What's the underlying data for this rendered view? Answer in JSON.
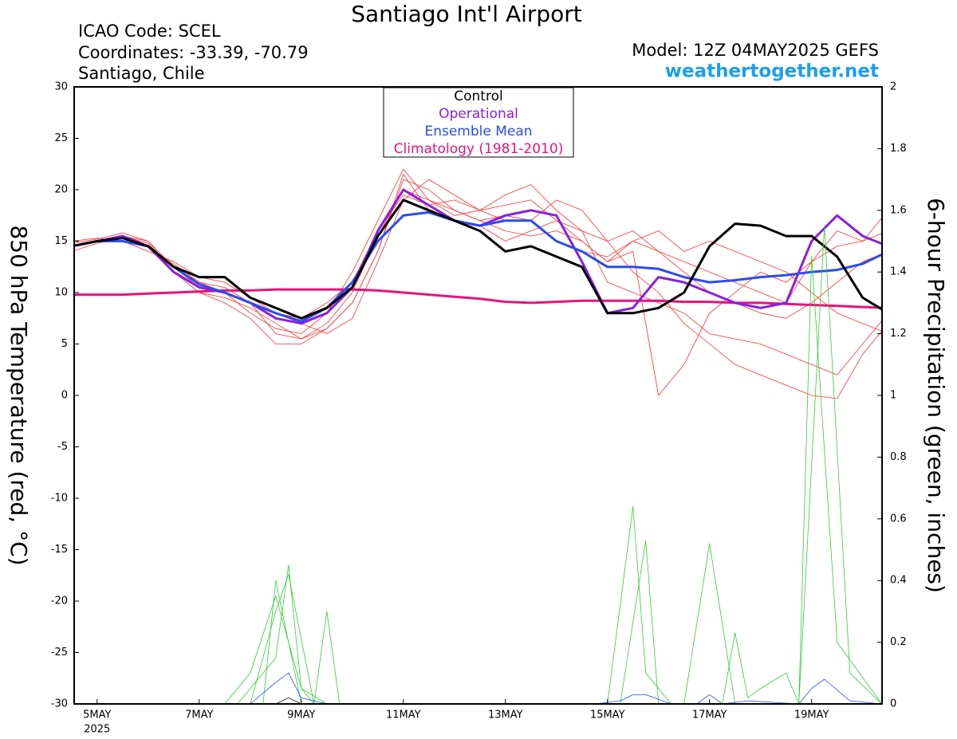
{
  "chart_data": {
    "type": "line",
    "title": "Santiago Int'l Airport",
    "info_left": [
      "ICAO Code: SCEL",
      "Coordinates: -33.39, -70.79",
      "Santiago, Chile"
    ],
    "model": "Model: 12Z 04MAY2025 GEFS",
    "source": "weathertogether.net",
    "y_label": "850 hPa Temperature (red, °C)",
    "y2_label": "6-hour Precipitation (green, inches)",
    "x_year_label": "2025",
    "xlim": [
      4.55,
      20.38
    ],
    "xticks": [
      {
        "value": 5,
        "label": "5MAY"
      },
      {
        "value": 7,
        "label": "7MAY"
      },
      {
        "value": 9,
        "label": "9MAY"
      },
      {
        "value": 11,
        "label": "11MAY"
      },
      {
        "value": 13,
        "label": "13MAY"
      },
      {
        "value": 15,
        "label": "15MAY"
      },
      {
        "value": 17,
        "label": "17MAY"
      },
      {
        "value": 19,
        "label": "19MAY"
      }
    ],
    "ylim": [
      -30,
      30
    ],
    "yticks": [
      30,
      25,
      20,
      15,
      10,
      5,
      0,
      -5,
      -10,
      -15,
      -20,
      -25,
      -30
    ],
    "y2lim": [
      0,
      2
    ],
    "y2ticks": [
      2,
      1.8,
      1.6,
      1.4,
      1.2,
      1,
      0.8,
      0.6,
      0.4,
      0.2,
      0
    ],
    "x": [
      4.5,
      5,
      5.5,
      6,
      6.5,
      7,
      7.5,
      8,
      8.5,
      9,
      9.5,
      10,
      10.5,
      11,
      11.5,
      12,
      12.5,
      13,
      13.5,
      14,
      14.5,
      15,
      15.5,
      16,
      16.5,
      17,
      17.5,
      18,
      18.5,
      19,
      19.5,
      20,
      20.5
    ],
    "series": [
      {
        "color": "#ff3030",
        "values": [
          14.5,
          15,
          15.5,
          15,
          12,
          10,
          9.5,
          8.5,
          7,
          5.5,
          6.5,
          9,
          14,
          21,
          20,
          18,
          17,
          17.5,
          17,
          15,
          14,
          13.5,
          15,
          14,
          12,
          10,
          9,
          8,
          7.5,
          9,
          11,
          13,
          14
        ]
      },
      {
        "color": "#ff3030",
        "values": [
          14,
          14.8,
          15.3,
          14.5,
          12.8,
          11,
          10,
          8,
          6.5,
          6,
          8,
          12,
          17,
          22,
          19,
          17.5,
          18,
          18.5,
          19,
          17,
          16,
          15,
          16,
          14,
          13,
          12,
          11,
          10,
          9,
          13,
          16,
          15,
          18
        ]
      },
      {
        "color": "#ff3030",
        "values": [
          15,
          15.3,
          15,
          14,
          13,
          11.5,
          11,
          9.5,
          8,
          7.5,
          9,
          11,
          16,
          19.5,
          18.5,
          19,
          18,
          19.5,
          20.5,
          18,
          16,
          11,
          10,
          9,
          8,
          6,
          5.5,
          5,
          4,
          3,
          2,
          5,
          8
        ]
      },
      {
        "color": "#ff3030",
        "values": [
          14.5,
          15,
          15.5,
          14.8,
          12,
          10,
          9,
          7.5,
          5,
          5,
          6.5,
          9,
          14,
          21.5,
          18,
          17,
          16.5,
          15,
          16,
          17,
          15,
          13,
          15,
          16,
          14,
          15,
          14,
          13,
          12,
          10,
          8,
          7,
          6
        ]
      },
      {
        "color": "#ff3030",
        "values": [
          14.8,
          15.2,
          15.8,
          15,
          12.5,
          11,
          10.5,
          9,
          6,
          5.5,
          7,
          10,
          15.5,
          20,
          19,
          18,
          17,
          16,
          15.5,
          16,
          15,
          13,
          14,
          0,
          3,
          8,
          10,
          12,
          11,
          13,
          14.5,
          15,
          16
        ]
      },
      {
        "color": "#ff3030",
        "values": [
          14.5,
          15,
          15,
          14.5,
          12.5,
          10.5,
          10,
          9,
          8,
          7,
          6,
          7.5,
          13,
          19,
          21,
          19.5,
          18,
          17,
          17,
          19,
          18,
          15,
          12,
          10,
          7,
          5,
          3,
          2,
          1,
          0,
          -0.3,
          4,
          7
        ]
      },
      {
        "name": "Climatology (1981-2010)",
        "color": "#e8127c",
        "values": [
          9.8,
          9.8,
          9.8,
          9.9,
          10,
          10.1,
          10.2,
          10.2,
          10.3,
          10.3,
          10.3,
          10.3,
          10.2,
          10,
          9.8,
          9.6,
          9.4,
          9.1,
          9,
          9.1,
          9.2,
          9.2,
          9.2,
          9.2,
          9.1,
          9.1,
          9,
          9,
          8.9,
          8.8,
          8.7,
          8.6,
          8.5
        ]
      },
      {
        "name": "Operational",
        "color": "#8a1ee0",
        "values": [
          14.5,
          15,
          15.5,
          14.5,
          12,
          10.5,
          10,
          9,
          7.5,
          7,
          8,
          10.5,
          16,
          20,
          18.5,
          17,
          16.5,
          17.5,
          18,
          17.5,
          13,
          8,
          8.5,
          11.5,
          11,
          10,
          9,
          8.5,
          9,
          15,
          17.5,
          15.5,
          14.5
        ]
      },
      {
        "name": "Ensemble Mean",
        "color": "#2a4cf0",
        "values": [
          14.5,
          15,
          15,
          14.5,
          12.5,
          10.8,
          10,
          9,
          8,
          7.2,
          8.5,
          11,
          15,
          17.5,
          17.8,
          17,
          16.5,
          17,
          17,
          15,
          14,
          12.5,
          12.5,
          12.3,
          11.5,
          11,
          11.2,
          11.5,
          11.7,
          12,
          12.2,
          12.8,
          14
        ]
      },
      {
        "name": "Control",
        "color": "#000000",
        "values": [
          14.5,
          15,
          15.3,
          14.5,
          12.5,
          11.5,
          11.5,
          9.5,
          8.5,
          7.5,
          8.5,
          10.5,
          15.5,
          19,
          18,
          17,
          16,
          14,
          14.5,
          13.5,
          12.5,
          8,
          8,
          8.5,
          10,
          14.5,
          16.7,
          16.5,
          15.5,
          15.5,
          13.5,
          9.5,
          8
        ]
      },
      {
        "color": "#33cc33",
        "axis": "y2",
        "x": [
          4.55,
          7.75,
          8.5,
          8.75,
          9.0,
          9.5,
          15.0,
          15.5,
          15.75,
          16.25,
          18.75,
          19.25,
          19.75,
          20.375
        ],
        "values": [
          0,
          0,
          0.15,
          0.45,
          0.05,
          0,
          0,
          0.64,
          0.1,
          0,
          0,
          1.55,
          0.1,
          0
        ]
      },
      {
        "color": "#33cc33",
        "axis": "y2",
        "x": [
          4.55,
          8.0,
          8.5,
          8.75,
          9.25,
          9.5,
          9.75,
          15.25,
          15.75,
          16.0,
          16.5,
          17.0,
          17.5,
          18.75,
          19.0,
          19.5,
          20.375
        ],
        "values": [
          0,
          0,
          0.3,
          0.42,
          0,
          0.3,
          0,
          0,
          0.53,
          0,
          0,
          0.52,
          0,
          0,
          1.45,
          0.2,
          0
        ]
      },
      {
        "color": "#33cc33",
        "axis": "y2",
        "x": [
          4.55,
          7.5,
          8.0,
          8.5,
          8.75,
          9.0,
          9.5,
          17.25,
          17.5,
          17.75,
          18.0,
          18.5,
          18.75,
          20.375
        ],
        "values": [
          0,
          0,
          0.1,
          0.35,
          0.2,
          0,
          0,
          0,
          0.23,
          0.02,
          0.05,
          0.1,
          0,
          0
        ]
      },
      {
        "color": "#33cc33",
        "axis": "y2",
        "x": [
          4.55,
          8.25,
          8.5,
          8.75,
          9.0,
          9.25,
          20.375
        ],
        "values": [
          0,
          0,
          0.4,
          0.2,
          0.05,
          0,
          0
        ]
      },
      {
        "color": "#2a4cf0",
        "axis": "y2",
        "x": [
          4.55,
          8.0,
          8.5,
          8.75,
          9.0,
          9.5,
          14.75,
          15.25,
          15.5,
          15.75,
          16.25,
          16.75,
          17.0,
          17.25,
          17.75,
          18.75,
          19.0,
          19.25,
          19.75,
          20.375
        ],
        "values": [
          0,
          0,
          0.07,
          0.1,
          0.02,
          0,
          0,
          0.01,
          0.03,
          0.03,
          0,
          0,
          0.03,
          0,
          0.01,
          0,
          0.05,
          0.08,
          0.01,
          0
        ]
      },
      {
        "color": "#000000",
        "axis": "y2",
        "x": [
          4.55,
          8.5,
          8.75,
          9.0,
          20.375
        ],
        "values": [
          0,
          0,
          0.02,
          0,
          0
        ]
      }
    ],
    "legend": [
      "Control",
      "Operational",
      "Ensemble Mean",
      "Climatology (1981-2010)"
    ]
  }
}
